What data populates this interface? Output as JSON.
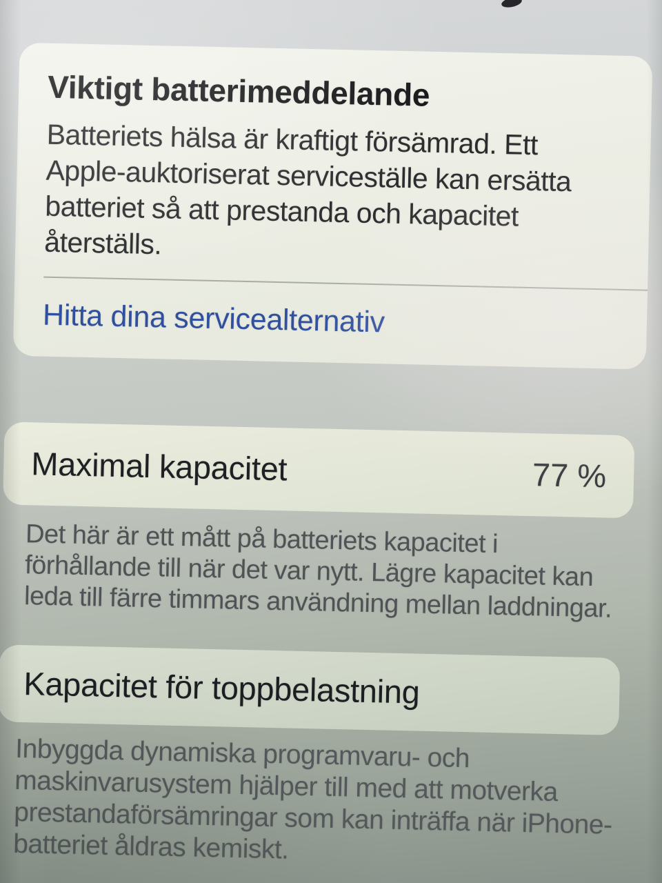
{
  "colors": {
    "link_blue": "#30509f",
    "heading_text": "#17181a",
    "body_text": "#2b2c2e",
    "footnote_text": "#4f5355",
    "card_background": "#eef0e7",
    "page_background_top": "#d5d7d9",
    "page_background_bottom": "#89928a"
  },
  "warning_card": {
    "title": "Viktigt batterimeddelande",
    "body_lines": [
      "Batteriets hälsa är kraftigt försämrad. Ett",
      "Apple-auktoriserat serviceställe kan ersätta",
      "batteriet så att prestanda och kapacitet",
      "återställs."
    ],
    "link_label": "Hitta dina servicealternativ"
  },
  "max_capacity": {
    "label": "Maximal kapacitet",
    "value": "77 %",
    "footnote_lines": [
      "Det här är ett mått på batteriets kapacitet i",
      "förhållande till när det var nytt. Lägre kapacitet kan",
      "leda till färre timmars användning mellan laddningar."
    ]
  },
  "peak_performance": {
    "label": "Kapacitet för toppbelastning",
    "footnote_lines": [
      "Inbyggda dynamiska programvaru- och",
      "maskinvarusystem hjälper till med att motverka",
      "prestandaförsämringar som kan inträffa när iPhone-",
      "batteriet åldras kemiskt."
    ]
  }
}
